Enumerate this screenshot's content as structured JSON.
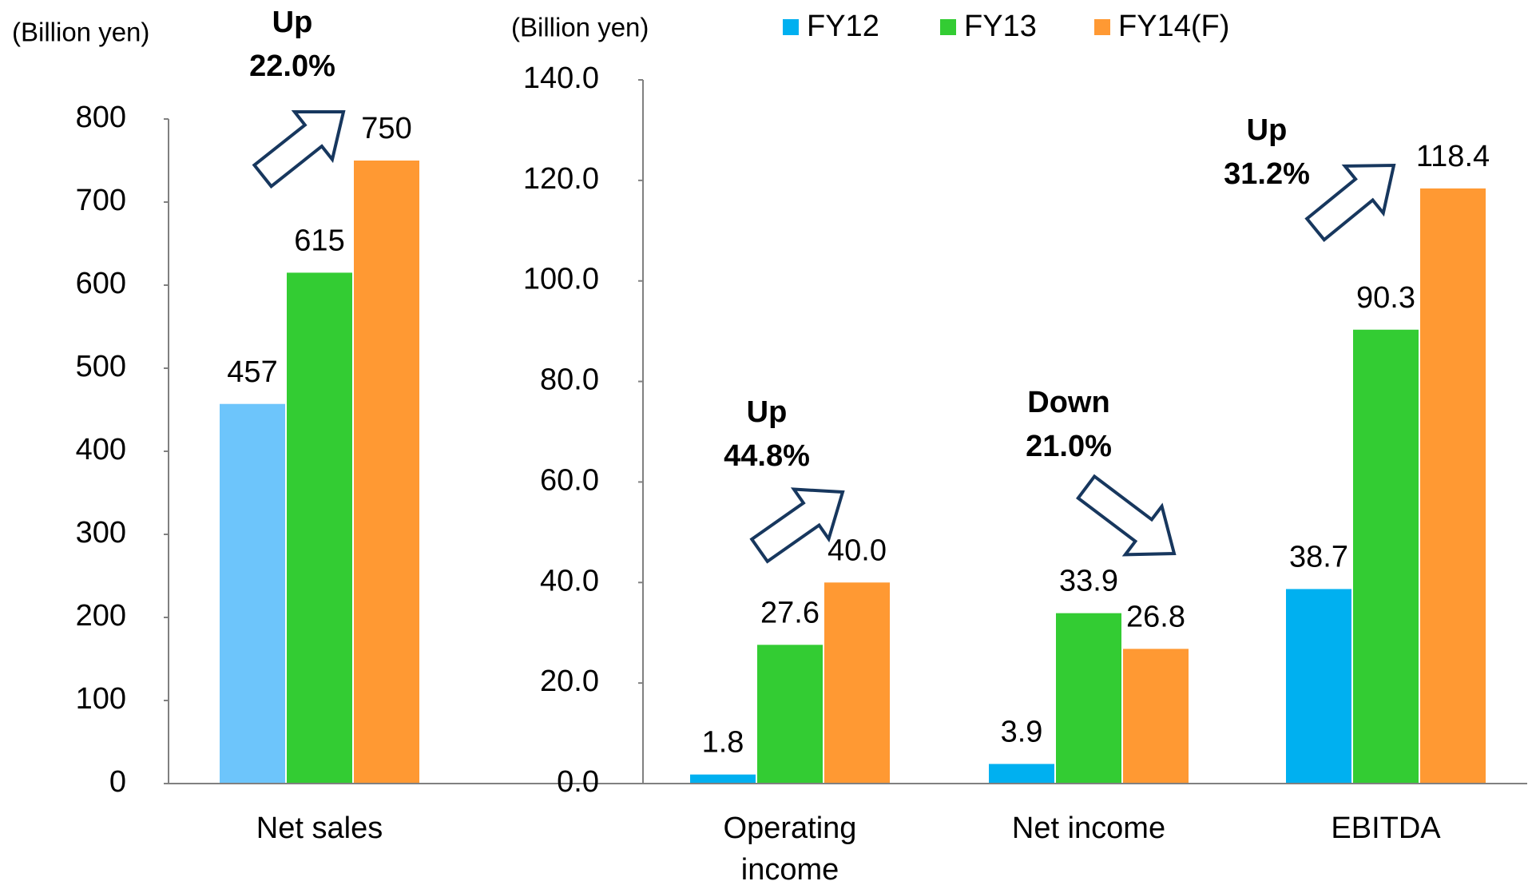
{
  "chart_data": [
    {
      "type": "bar",
      "y_label": "(Billion yen)",
      "categories": [
        "Net sales"
      ],
      "series": [
        {
          "color": "#6dc5fb",
          "values": [
            457
          ]
        },
        {
          "color": "#33cc33",
          "values": [
            615
          ]
        },
        {
          "color": "#ff9933",
          "values": [
            750
          ]
        }
      ],
      "ylim": [
        0,
        800
      ],
      "yticks": [
        0,
        100,
        200,
        300,
        400,
        500,
        600,
        700,
        800
      ],
      "annotations": [
        [
          "Up",
          "22.0%"
        ]
      ]
    },
    {
      "type": "bar",
      "y_label": "(Billion yen)",
      "categories": [
        "Operating income",
        "Net income",
        "EBITDA"
      ],
      "series": [
        {
          "name": "FY12",
          "color": "#00b0f0",
          "values": [
            1.8,
            3.9,
            38.7
          ]
        },
        {
          "name": "FY13",
          "color": "#33cc33",
          "values": [
            27.6,
            33.9,
            90.3
          ],
          "value_labels": [
            "27.6",
            "33.9",
            "90.3"
          ]
        },
        {
          "name": "FY14(F)",
          "color": "#ff9933",
          "values": [
            40.0,
            26.8,
            118.4
          ],
          "value_labels": [
            "40.0",
            "26.8",
            "118.4"
          ]
        }
      ],
      "ylim": [
        0,
        140
      ],
      "yticks": [
        {
          "value": 0,
          "label": "0.0"
        },
        {
          "value": 20,
          "label": "20.0"
        },
        {
          "value": 40,
          "label": "40.0"
        },
        {
          "value": 60,
          "label": "60.0"
        },
        {
          "value": 80,
          "label": "80.0"
        },
        {
          "value": 100,
          "label": "100.0"
        },
        {
          "value": 120,
          "label": "120.0"
        },
        {
          "value": 140,
          "label": "140.0"
        }
      ],
      "annotations": [
        [
          "Up",
          "44.8%"
        ],
        [
          "Down",
          "21.0%"
        ],
        [
          "Up",
          "31.2%"
        ]
      ]
    }
  ]
}
